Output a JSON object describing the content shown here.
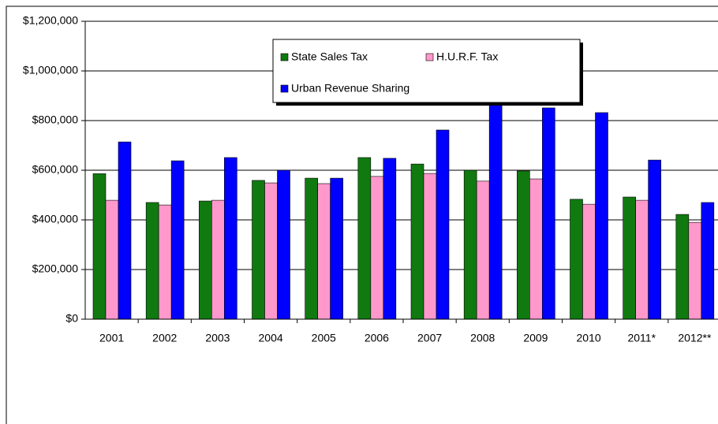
{
  "chart_data": {
    "type": "bar",
    "categories": [
      "2001",
      "2002",
      "2003",
      "2004",
      "2005",
      "2006",
      "2007",
      "2008",
      "2009",
      "2010",
      "2011*",
      "2012**"
    ],
    "series": [
      {
        "name": "State Sales Tax",
        "color": "#107a10",
        "values": [
          586000,
          470000,
          476000,
          559000,
          568000,
          651000,
          625000,
          600000,
          597000,
          483000,
          492000,
          422000
        ]
      },
      {
        "name": "H.U.R.F. Tax",
        "color": "#ff99cc",
        "values": [
          479000,
          460000,
          479000,
          549000,
          546000,
          575000,
          587000,
          556000,
          565000,
          463000,
          479000,
          390000
        ]
      },
      {
        "name": "Urban Revenue Sharing",
        "color": "#0000ff",
        "values": [
          714000,
          638000,
          651000,
          600000,
          568000,
          648000,
          762000,
          873000,
          851000,
          832000,
          641000,
          470000
        ]
      }
    ],
    "ylim": [
      0,
      1200000
    ],
    "yticks": [
      {
        "value": 0,
        "label": "$0"
      },
      {
        "value": 200000,
        "label": "$200,000"
      },
      {
        "value": 400000,
        "label": "$400,000"
      },
      {
        "value": 600000,
        "label": "$600,000"
      },
      {
        "value": 800000,
        "label": "$800,000"
      },
      {
        "value": 1000000,
        "label": "$1,000,000"
      },
      {
        "value": 1200000,
        "label": "$1,200,000"
      }
    ],
    "grid": true,
    "legend": "top"
  }
}
